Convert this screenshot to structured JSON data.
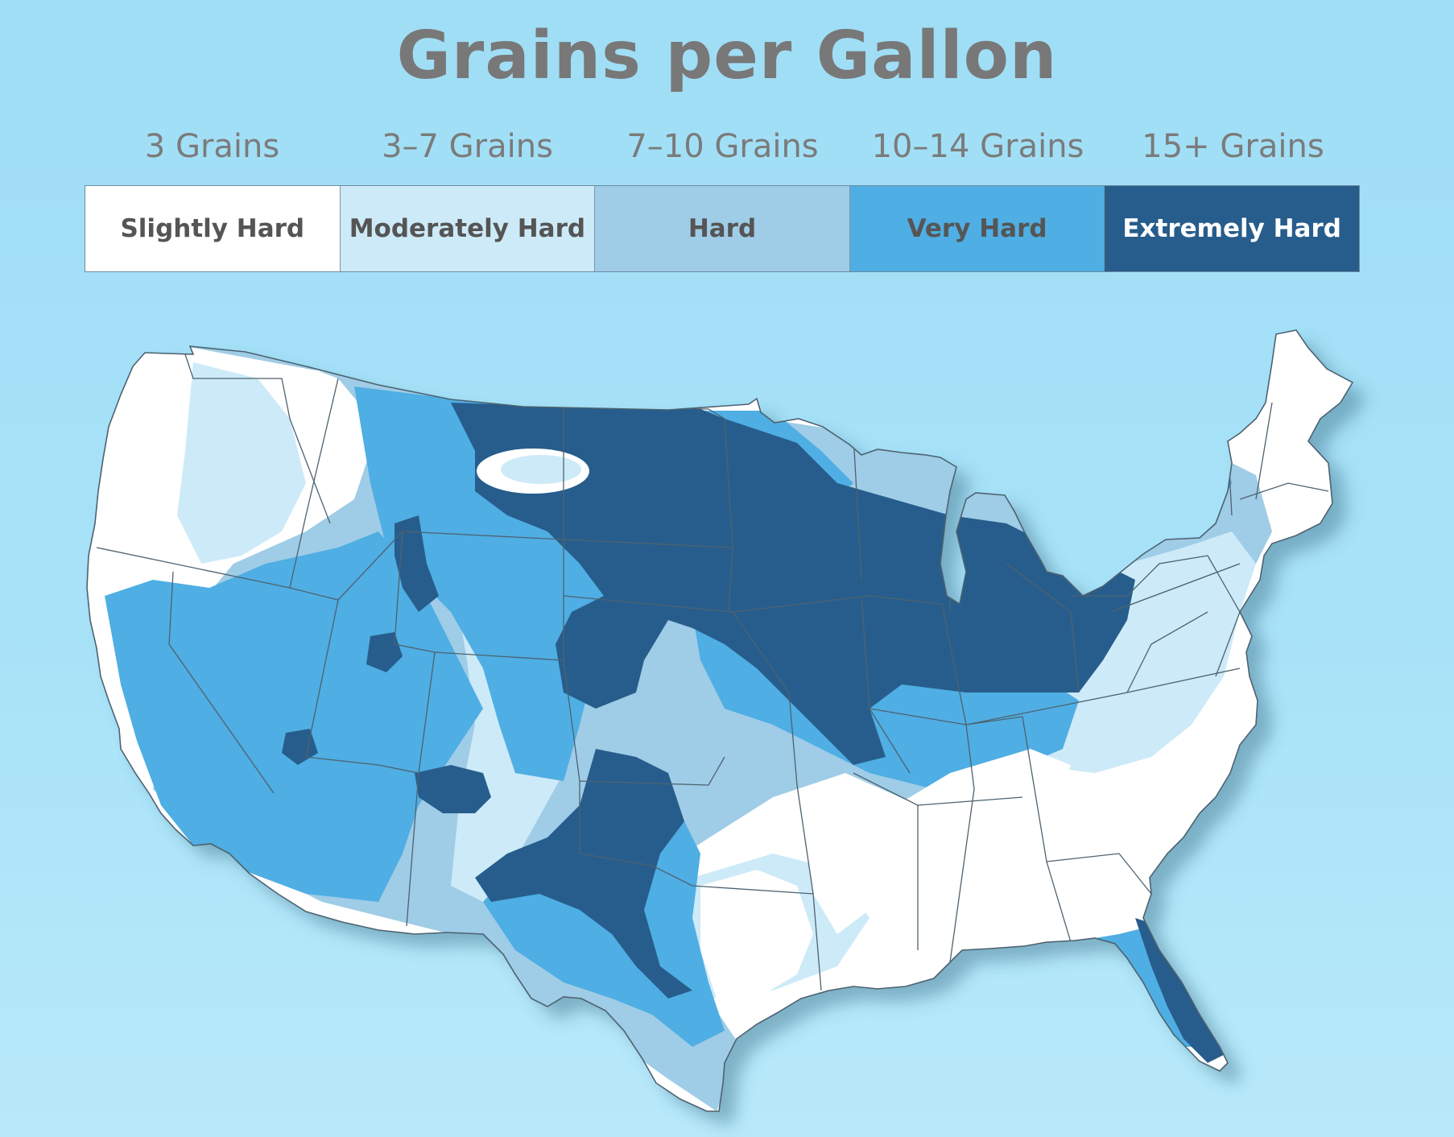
{
  "title": "Grains per Gallon",
  "legend": [
    {
      "grains": "3 Grains",
      "label": "Slightly Hard",
      "color": "#ffffff",
      "text_color": "#555555"
    },
    {
      "grains": "3–7 Grains",
      "label": "Moderately Hard",
      "color": "#cdeaf8",
      "text_color": "#555555"
    },
    {
      "grains": "7–10 Grains",
      "label": "Hard",
      "color": "#9fcce6",
      "text_color": "#555555"
    },
    {
      "grains": "10–14 Grains",
      "label": "Very Hard",
      "color": "#4faee3",
      "text_color": "#555555"
    },
    {
      "grains": "15+ Grains",
      "label": "Extremely Hard",
      "color": "#275d8c",
      "text_color": "#ffffff"
    }
  ],
  "map": {
    "subject": "water hardness across the contiguous United States",
    "border_color": "#4d6270"
  }
}
